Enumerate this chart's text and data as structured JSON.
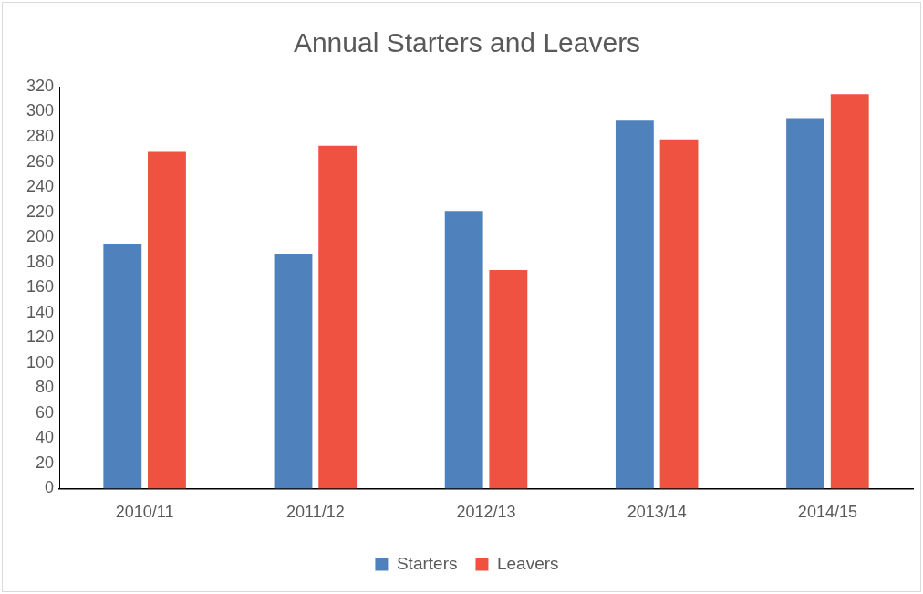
{
  "chart_data": {
    "type": "bar",
    "title": "Annual Starters and Leavers",
    "categories": [
      "2010/11",
      "2011/12",
      "2012/13",
      "2013/14",
      "2014/15"
    ],
    "series": [
      {
        "name": "Starters",
        "color": "#4f81bd",
        "values": [
          195,
          187,
          221,
          293,
          295
        ]
      },
      {
        "name": "Leavers",
        "color": "#ef5241",
        "values": [
          268,
          273,
          174,
          278,
          314
        ]
      }
    ],
    "ylim": [
      0,
      320
    ],
    "yticks": [
      0,
      20,
      40,
      60,
      80,
      100,
      120,
      140,
      160,
      180,
      200,
      220,
      240,
      260,
      280,
      300,
      320
    ],
    "grid": false,
    "legend": "bottom"
  }
}
